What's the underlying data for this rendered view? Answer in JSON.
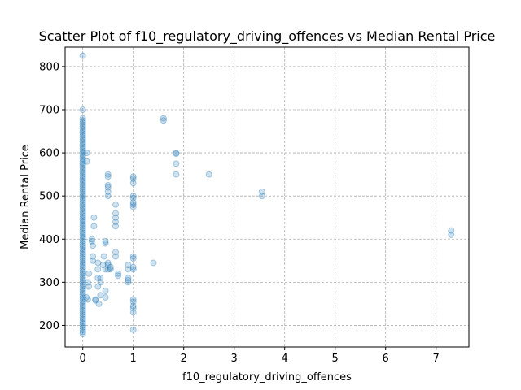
{
  "chart_data": {
    "type": "scatter",
    "title": "Scatter Plot of f10_regulatory_driving_offences vs Median Rental Price",
    "xlabel": "f10_regulatory_driving_offences",
    "ylabel": "Median Rental Price",
    "xlim": [
      -0.35,
      7.65
    ],
    "ylim": [
      150,
      845
    ],
    "xticks": [
      0,
      1,
      2,
      3,
      4,
      5,
      6,
      7
    ],
    "yticks": [
      200,
      300,
      400,
      500,
      600,
      700,
      800
    ],
    "grid": true,
    "legend": "none",
    "marker_color": "#1f77b4",
    "points": [
      [
        0,
        825
      ],
      [
        0,
        700
      ],
      [
        0,
        680
      ],
      [
        0,
        675
      ],
      [
        0,
        670
      ],
      [
        0,
        665
      ],
      [
        0,
        660
      ],
      [
        0,
        655
      ],
      [
        0,
        650
      ],
      [
        0,
        645
      ],
      [
        0,
        640
      ],
      [
        0,
        635
      ],
      [
        0,
        630
      ],
      [
        0,
        625
      ],
      [
        0,
        620
      ],
      [
        0,
        615
      ],
      [
        0,
        610
      ],
      [
        0,
        605
      ],
      [
        0,
        600
      ],
      [
        0,
        595
      ],
      [
        0,
        590
      ],
      [
        0,
        585
      ],
      [
        0,
        580
      ],
      [
        0,
        575
      ],
      [
        0,
        570
      ],
      [
        0,
        565
      ],
      [
        0,
        560
      ],
      [
        0,
        555
      ],
      [
        0,
        550
      ],
      [
        0,
        545
      ],
      [
        0,
        540
      ],
      [
        0,
        535
      ],
      [
        0,
        530
      ],
      [
        0,
        525
      ],
      [
        0,
        520
      ],
      [
        0,
        515
      ],
      [
        0,
        510
      ],
      [
        0,
        505
      ],
      [
        0,
        500
      ],
      [
        0,
        495
      ],
      [
        0,
        490
      ],
      [
        0,
        485
      ],
      [
        0,
        480
      ],
      [
        0,
        475
      ],
      [
        0,
        470
      ],
      [
        0,
        465
      ],
      [
        0,
        460
      ],
      [
        0,
        455
      ],
      [
        0,
        450
      ],
      [
        0,
        445
      ],
      [
        0,
        440
      ],
      [
        0,
        435
      ],
      [
        0,
        430
      ],
      [
        0,
        425
      ],
      [
        0,
        420
      ],
      [
        0,
        415
      ],
      [
        0,
        410
      ],
      [
        0,
        405
      ],
      [
        0,
        400
      ],
      [
        0,
        395
      ],
      [
        0,
        390
      ],
      [
        0,
        385
      ],
      [
        0,
        380
      ],
      [
        0,
        375
      ],
      [
        0,
        370
      ],
      [
        0,
        365
      ],
      [
        0,
        360
      ],
      [
        0,
        355
      ],
      [
        0,
        350
      ],
      [
        0,
        345
      ],
      [
        0,
        340
      ],
      [
        0,
        335
      ],
      [
        0,
        330
      ],
      [
        0,
        325
      ],
      [
        0,
        320
      ],
      [
        0,
        315
      ],
      [
        0,
        310
      ],
      [
        0,
        305
      ],
      [
        0,
        300
      ],
      [
        0,
        295
      ],
      [
        0,
        290
      ],
      [
        0,
        285
      ],
      [
        0,
        280
      ],
      [
        0,
        275
      ],
      [
        0,
        270
      ],
      [
        0,
        265
      ],
      [
        0,
        260
      ],
      [
        0,
        255
      ],
      [
        0,
        250
      ],
      [
        0,
        245
      ],
      [
        0,
        240
      ],
      [
        0,
        235
      ],
      [
        0,
        230
      ],
      [
        0,
        225
      ],
      [
        0,
        220
      ],
      [
        0,
        215
      ],
      [
        0,
        210
      ],
      [
        0,
        205
      ],
      [
        0,
        200
      ],
      [
        0,
        195
      ],
      [
        0,
        190
      ],
      [
        0,
        185
      ],
      [
        0,
        180
      ],
      [
        0.08,
        600
      ],
      [
        0.08,
        580
      ],
      [
        0.07,
        265
      ],
      [
        0.1,
        260
      ],
      [
        0.1,
        300
      ],
      [
        0.12,
        290
      ],
      [
        0.12,
        320
      ],
      [
        0.18,
        400
      ],
      [
        0.18,
        395
      ],
      [
        0.2,
        385
      ],
      [
        0.2,
        360
      ],
      [
        0.2,
        350
      ],
      [
        0.22,
        450
      ],
      [
        0.22,
        430
      ],
      [
        0.25,
        260
      ],
      [
        0.25,
        258
      ],
      [
        0.3,
        345
      ],
      [
        0.3,
        330
      ],
      [
        0.3,
        310
      ],
      [
        0.3,
        290
      ],
      [
        0.32,
        250
      ],
      [
        0.35,
        270
      ],
      [
        0.35,
        310
      ],
      [
        0.35,
        300
      ],
      [
        0.4,
        340
      ],
      [
        0.42,
        360
      ],
      [
        0.45,
        395
      ],
      [
        0.45,
        390
      ],
      [
        0.45,
        330
      ],
      [
        0.45,
        280
      ],
      [
        0.45,
        265
      ],
      [
        0.5,
        550
      ],
      [
        0.5,
        545
      ],
      [
        0.5,
        525
      ],
      [
        0.5,
        520
      ],
      [
        0.5,
        510
      ],
      [
        0.5,
        500
      ],
      [
        0.5,
        345
      ],
      [
        0.5,
        340
      ],
      [
        0.5,
        330
      ],
      [
        0.55,
        335
      ],
      [
        0.55,
        330
      ],
      [
        0.65,
        480
      ],
      [
        0.65,
        460
      ],
      [
        0.65,
        450
      ],
      [
        0.65,
        440
      ],
      [
        0.65,
        430
      ],
      [
        0.65,
        370
      ],
      [
        0.65,
        360
      ],
      [
        0.7,
        320
      ],
      [
        0.7,
        315
      ],
      [
        0.9,
        340
      ],
      [
        0.9,
        330
      ],
      [
        0.9,
        310
      ],
      [
        0.9,
        305
      ],
      [
        0.9,
        300
      ],
      [
        1.0,
        545
      ],
      [
        1.0,
        540
      ],
      [
        1.0,
        530
      ],
      [
        1.0,
        500
      ],
      [
        1.0,
        495
      ],
      [
        1.0,
        485
      ],
      [
        1.0,
        480
      ],
      [
        1.0,
        475
      ],
      [
        1.0,
        360
      ],
      [
        1.0,
        355
      ],
      [
        1.0,
        335
      ],
      [
        1.0,
        330
      ],
      [
        1.0,
        260
      ],
      [
        1.0,
        255
      ],
      [
        1.0,
        245
      ],
      [
        1.0,
        240
      ],
      [
        1.0,
        230
      ],
      [
        1.0,
        190
      ],
      [
        1.4,
        345
      ],
      [
        1.6,
        680
      ],
      [
        1.6,
        675
      ],
      [
        1.85,
        600
      ],
      [
        1.85,
        598
      ],
      [
        1.85,
        575
      ],
      [
        1.85,
        550
      ],
      [
        2.5,
        550
      ],
      [
        3.55,
        510
      ],
      [
        3.55,
        500
      ],
      [
        7.3,
        420
      ],
      [
        7.3,
        410
      ]
    ]
  }
}
